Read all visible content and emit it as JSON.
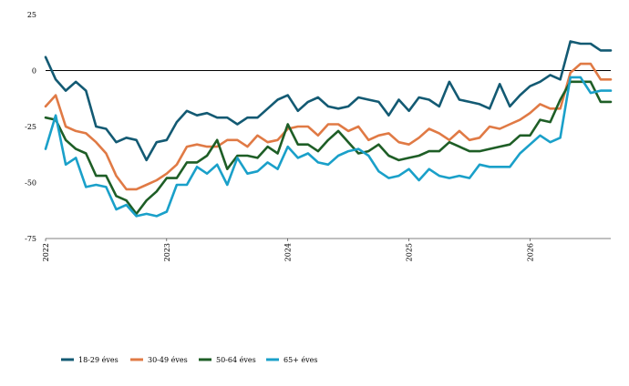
{
  "chart_data": {
    "type": "line",
    "title": "",
    "xlabel": "",
    "ylabel": "",
    "ylim": [
      -75,
      25
    ],
    "yticks": [
      25,
      0,
      -25,
      -50,
      -75
    ],
    "xticks": [
      "2022",
      "2023",
      "2024",
      "2025",
      "2026"
    ],
    "grid": false,
    "zero_line": true,
    "legend_position": "bottom-left",
    "x": [
      "2022-01",
      "2022-02",
      "2022-03",
      "2022-04",
      "2022-05",
      "2022-06",
      "2022-07",
      "2022-08",
      "2022-09",
      "2022-10",
      "2022-11",
      "2022-12",
      "2023-01",
      "2023-02",
      "2023-03",
      "2023-04",
      "2023-05",
      "2023-06",
      "2023-07",
      "2023-08",
      "2023-09",
      "2023-10",
      "2023-11",
      "2023-12",
      "2024-01",
      "2024-02",
      "2024-03",
      "2024-04",
      "2024-05",
      "2024-06",
      "2024-07",
      "2024-08",
      "2024-09",
      "2024-10",
      "2024-11",
      "2024-12",
      "2025-01",
      "2025-02",
      "2025-03",
      "2025-04",
      "2025-05",
      "2025-06",
      "2025-07",
      "2025-08",
      "2025-09",
      "2025-10",
      "2025-11",
      "2025-12",
      "2026-01",
      "2026-02",
      "2026-03",
      "2026-04",
      "2026-05",
      "2026-06",
      "2026-07",
      "2026-08",
      "2026-09"
    ],
    "series": [
      {
        "name": "18-29 éves",
        "color": "#135a73",
        "values": [
          6,
          -4,
          -9,
          -5,
          -9,
          -25,
          -26,
          -32,
          -30,
          -31,
          -40,
          -32,
          -31,
          -23,
          -18,
          -20,
          -19,
          -21,
          -21,
          -24,
          -21,
          -21,
          -17,
          -13,
          -11,
          -18,
          -14,
          -12,
          -16,
          -17,
          -16,
          -12,
          -13,
          -14,
          -20,
          -13,
          -18,
          -12,
          -13,
          -16,
          -5,
          -13,
          -14,
          -15,
          -17,
          -6,
          -16,
          -11,
          -7,
          -5,
          -2,
          -4,
          13,
          12,
          12,
          9,
          9
        ]
      },
      {
        "name": "30-49 éves",
        "color": "#e07a45",
        "values": [
          -16,
          -11,
          -25,
          -27,
          -28,
          -32,
          -37,
          -47,
          -53,
          -53,
          -51,
          -49,
          -46,
          -42,
          -34,
          -33,
          -34,
          -34,
          -31,
          -31,
          -34,
          -29,
          -32,
          -31,
          -26,
          -25,
          -25,
          -29,
          -24,
          -24,
          -27,
          -25,
          -31,
          -29,
          -28,
          -32,
          -33,
          -30,
          -26,
          -28,
          -31,
          -27,
          -31,
          -30,
          -25,
          -26,
          -24,
          -22,
          -19,
          -15,
          -17,
          -17,
          -1,
          3,
          3,
          -4,
          -4
        ]
      },
      {
        "name": "50-64 éves",
        "color": "#1e5e26",
        "values": [
          -21,
          -22,
          -31,
          -35,
          -37,
          -47,
          -47,
          -56,
          -58,
          -64,
          -58,
          -54,
          -48,
          -48,
          -41,
          -41,
          -38,
          -31,
          -44,
          -38,
          -38,
          -39,
          -34,
          -37,
          -24,
          -33,
          -33,
          -36,
          -31,
          -27,
          -32,
          -37,
          -36,
          -33,
          -38,
          -40,
          -39,
          -38,
          -36,
          -36,
          -32,
          -34,
          -36,
          -36,
          -35,
          -34,
          -33,
          -29,
          -29,
          -22,
          -23,
          -13,
          -5,
          -5,
          -5,
          -14,
          -14
        ]
      },
      {
        "name": "65+ éves",
        "color": "#1aa0c9",
        "values": [
          -35,
          -20,
          -42,
          -39,
          -52,
          -51,
          -52,
          -62,
          -60,
          -65,
          -64,
          -65,
          -63,
          -51,
          -51,
          -43,
          -46,
          -42,
          -51,
          -39,
          -46,
          -45,
          -41,
          -44,
          -34,
          -39,
          -37,
          -41,
          -42,
          -38,
          -36,
          -35,
          -38,
          -45,
          -48,
          -47,
          -44,
          -49,
          -44,
          -47,
          -48,
          -47,
          -48,
          -42,
          -43,
          -43,
          -43,
          -37,
          -33,
          -29,
          -32,
          -30,
          -3,
          -3,
          -10,
          -9,
          -9
        ]
      }
    ]
  }
}
